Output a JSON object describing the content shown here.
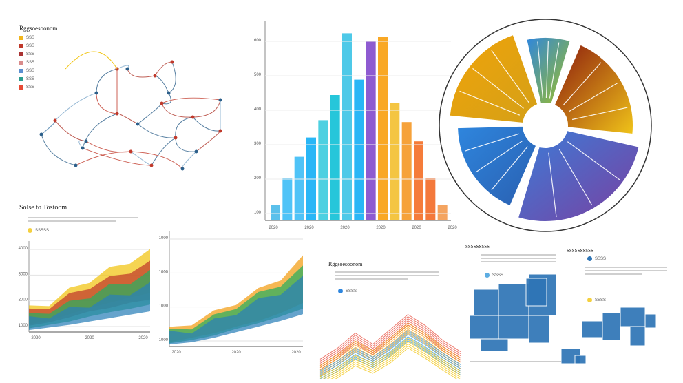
{
  "chart_data": [
    {
      "type": "network",
      "title": "Rggsoesoonom",
      "legend": [
        {
          "label": "SSS",
          "color": "#f1b51c"
        },
        {
          "label": "SSS",
          "color": "#c0392b"
        },
        {
          "label": "SSS",
          "color": "#a33"
        },
        {
          "label": "SSS",
          "color": "#d98b8b"
        },
        {
          "label": "SSS",
          "color": "#5a8fd1"
        },
        {
          "label": "SSS",
          "color": "#2a9d8f"
        },
        {
          "label": "SSS",
          "color": "#e64b35"
        }
      ]
    },
    {
      "type": "bar",
      "yticks": [
        "600",
        "500",
        "400",
        "300",
        "200",
        "100"
      ],
      "xticks": [
        "2020",
        "2020",
        "2020",
        "2020",
        "2020",
        "2020"
      ],
      "values": [
        8,
        22,
        33,
        43,
        52,
        65,
        97,
        73,
        93,
        95,
        61,
        51,
        41,
        22,
        8
      ],
      "colors": [
        "#5bc0eb",
        "#4fc3f7",
        "#4fc3f7",
        "#29b6f6",
        "#4dd0e1",
        "#26c6da",
        "#4ec9e8",
        "#29b6f6",
        "#8e5bd1",
        "#f9a825",
        "#f4c542",
        "#f6a23a",
        "#f57c3a",
        "#f4793b",
        "#f4a460"
      ]
    },
    {
      "type": "pie",
      "slices": [
        {
          "value": 22,
          "color_start": "#8b1a0e",
          "color_end": "#f0c419"
        },
        {
          "value": 28,
          "color_start": "#3b7dd8",
          "color_end": "#7b3fa0"
        },
        {
          "value": 20,
          "color_start": "#2e86de",
          "color_end": "#2a5fb0"
        },
        {
          "value": 20,
          "color_start": "#f0a30a",
          "color_end": "#d4a017"
        },
        {
          "value": 10,
          "color_start": "#2e86de",
          "color_end": "#a0c020"
        }
      ]
    },
    {
      "type": "area",
      "title": "Solse to Tostoom",
      "yticks": [
        "4000",
        "3000",
        "2000",
        "1000"
      ],
      "xticks": [
        "2020",
        "2020",
        "2020"
      ],
      "legend_label": "SSSSS",
      "legend_color": "#f4d03f",
      "series": [
        {
          "values": [
            22,
            30,
            45,
            60,
            72,
            85,
            95
          ],
          "color": "#f1c40f"
        },
        {
          "values": [
            18,
            26,
            38,
            52,
            60,
            72,
            80
          ],
          "color": "#c0392b"
        },
        {
          "values": [
            12,
            20,
            28,
            40,
            50,
            58,
            68
          ],
          "color": "#27ae60"
        },
        {
          "values": [
            8,
            14,
            20,
            28,
            36,
            44,
            52
          ],
          "color": "#2980b9"
        }
      ]
    },
    {
      "type": "area",
      "yticks": [
        "1000",
        "1000",
        "1000",
        "1000"
      ],
      "xticks": [
        "2020",
        "2020",
        "2020"
      ],
      "series": [
        {
          "values": [
            10,
            18,
            26,
            38,
            48,
            62,
            80
          ],
          "color": "#f39c12"
        },
        {
          "values": [
            8,
            14,
            22,
            34,
            44,
            56,
            70
          ],
          "color": "#27ae60"
        },
        {
          "values": [
            6,
            10,
            18,
            28,
            38,
            48,
            60
          ],
          "color": "#2980b9"
        }
      ]
    },
    {
      "type": "line",
      "title": "Rggsoesoonom",
      "legend_label": "SSSS",
      "legend_color": "#2e86de",
      "series": [
        {
          "values": [
            20,
            35,
            55,
            40,
            60,
            80,
            65,
            45,
            30
          ],
          "color": "#e74c3c"
        },
        {
          "values": [
            15,
            30,
            48,
            35,
            52,
            72,
            58,
            40,
            25
          ],
          "color": "#f39c12"
        },
        {
          "values": [
            12,
            25,
            42,
            30,
            46,
            66,
            52,
            35,
            20
          ],
          "color": "#3498db"
        },
        {
          "values": [
            8,
            20,
            36,
            26,
            40,
            60,
            46,
            30,
            15
          ],
          "color": "#f1c40f"
        }
      ]
    },
    {
      "type": "heatmap",
      "title": "SSSSSSSSS",
      "legend_label": "SSSS",
      "legend_color": "#5dade2",
      "color": "#2e75b6"
    },
    {
      "type": "heatmap",
      "title": "SSSSSSSSSS",
      "legend": [
        {
          "label": "SSSS",
          "color": "#2e75b6"
        },
        {
          "label": "SSSS",
          "color": "#f4d03f"
        }
      ],
      "color": "#2e75b6"
    }
  ]
}
